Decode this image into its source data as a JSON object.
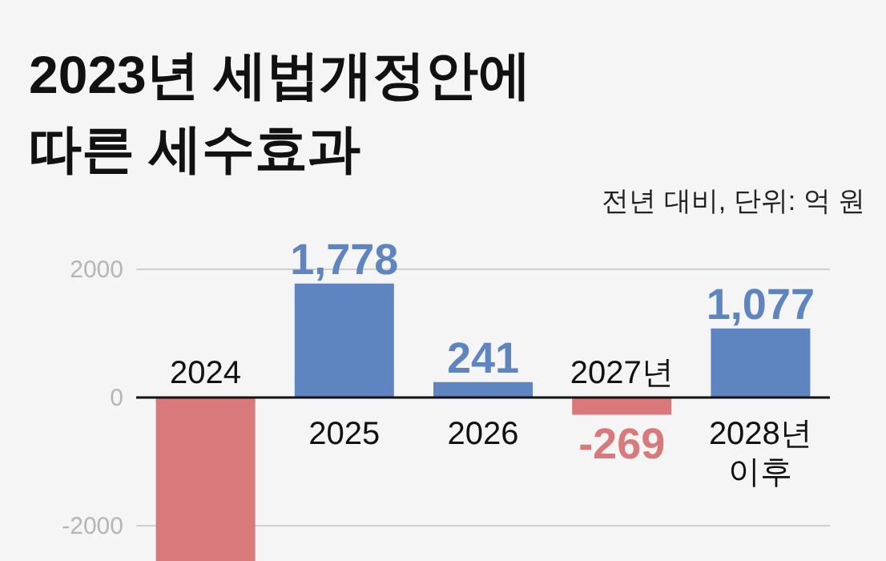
{
  "chart_data": {
    "type": "bar",
    "title": "2023년 세법개정안에 따른 세수효과",
    "subtitle": "전년 대비, 단위: 억 원",
    "categories": [
      "2024",
      "2025",
      "2026",
      "2027년",
      "2028년 이후"
    ],
    "values": [
      -2550,
      1778,
      241,
      -269,
      1077
    ],
    "colors": [
      "#d87a7b",
      "#5e85c0",
      "#5e85c0",
      "#d87a7b",
      "#5e85c0"
    ],
    "value_labels": [
      null,
      "1,778",
      "241",
      "-269",
      "1,077"
    ],
    "ylim": [
      -2550,
      2000
    ],
    "yticks": [
      {
        "value": -2000,
        "label": "-2000"
      },
      0,
      2000
    ],
    "grid": "y"
  }
}
